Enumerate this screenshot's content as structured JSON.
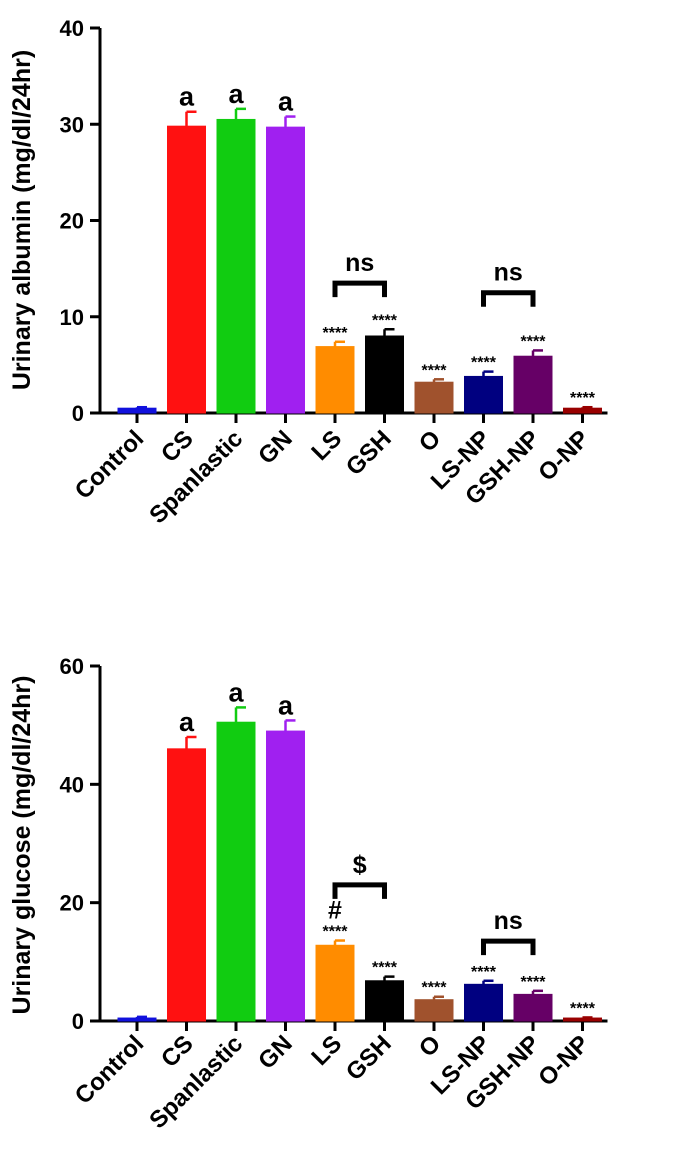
{
  "chart_data": [
    {
      "type": "bar",
      "ylabel": "Urinary albumin (mg/dl/24hr)",
      "ylim": [
        0,
        40
      ],
      "yticks": [
        0,
        10,
        20,
        30,
        40
      ],
      "categories": [
        "Control",
        "CS",
        "Spanlastic",
        "GN",
        "LS",
        "GSH",
        "O",
        "LS-NP",
        "GSH-NP",
        "O-NP"
      ],
      "values": [
        0.5,
        29.8,
        30.5,
        29.7,
        6.9,
        8.0,
        3.2,
        3.8,
        5.9,
        0.5
      ],
      "errors": [
        0.1,
        1.5,
        1.1,
        1.1,
        0.5,
        0.7,
        0.3,
        0.5,
        0.6,
        0.1
      ],
      "colors": [
        "#1111dd",
        "#ff1111",
        "#11cc11",
        "#a020f0",
        "#ff8c00",
        "#000000",
        "#a0522d",
        "#000080",
        "#660066",
        "#990000"
      ],
      "annotations": [
        "",
        "a",
        "a",
        "a",
        "****",
        "****",
        "****",
        "****",
        "****",
        "****"
      ],
      "brackets": [
        {
          "from": 4,
          "to": 5,
          "label": "ns",
          "y": 13.5
        },
        {
          "from": 7,
          "to": 8,
          "label": "ns",
          "y": 12.5
        }
      ]
    },
    {
      "type": "bar",
      "ylabel": "Urinary glucose (mg/dl/24hr)",
      "ylim": [
        0,
        60
      ],
      "yticks": [
        0,
        20,
        40,
        60
      ],
      "categories": [
        "Control",
        "CS",
        "Spanlastic",
        "GN",
        "LS",
        "GSH",
        "O",
        "LS-NP",
        "GSH-NP",
        "O-NP"
      ],
      "values": [
        0.5,
        46.0,
        50.5,
        49.0,
        12.8,
        6.8,
        3.6,
        6.2,
        4.5,
        0.5
      ],
      "errors": [
        0.2,
        2.0,
        2.5,
        1.8,
        0.8,
        0.7,
        0.5,
        0.6,
        0.6,
        0.1
      ],
      "colors": [
        "#1111dd",
        "#ff1111",
        "#11cc11",
        "#a020f0",
        "#ff8c00",
        "#000000",
        "#a0522d",
        "#000080",
        "#660066",
        "#990000"
      ],
      "annotations": [
        "",
        "a",
        "a",
        "a",
        "****",
        "****",
        "****",
        "****",
        "****",
        "****"
      ],
      "extra_marks": [
        {
          "index": 4,
          "label": "#"
        }
      ],
      "brackets": [
        {
          "from": 4,
          "to": 5,
          "label": "$",
          "y": 23.0
        },
        {
          "from": 7,
          "to": 8,
          "label": "ns",
          "y": 13.5
        }
      ]
    }
  ]
}
